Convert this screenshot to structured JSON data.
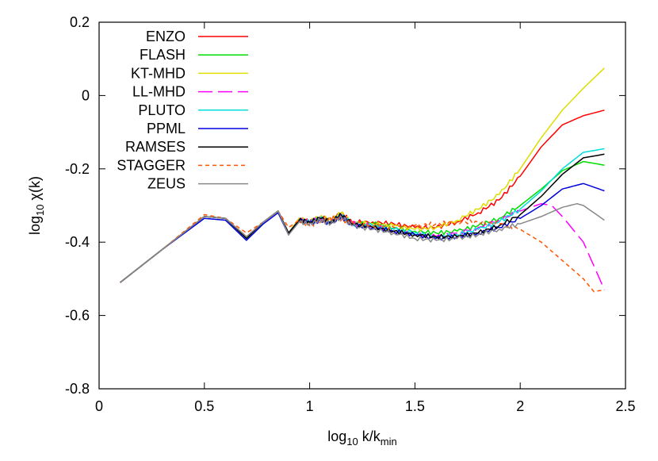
{
  "chart_data": {
    "type": "line",
    "xlabel": {
      "main": "log",
      "sub": "10",
      "rest": " k/k",
      "sub2": "min"
    },
    "ylabel": {
      "main": "log",
      "sub": "10",
      "rest": " χ(k)"
    },
    "xlim": [
      0,
      2.5
    ],
    "ylim": [
      -0.8,
      0.2
    ],
    "xticks": [
      "0",
      "0.5",
      "1",
      "1.5",
      "2",
      "2.5"
    ],
    "xtick_values": [
      0,
      0.5,
      1,
      1.5,
      2,
      2.5
    ],
    "yticks": [
      "-0.8",
      "-0.6",
      "-0.4",
      "-0.2",
      "0",
      "0.2"
    ],
    "ytick_values": [
      -0.8,
      -0.6,
      -0.4,
      -0.2,
      0,
      0.2
    ],
    "grid": false,
    "legend_position": "top-left",
    "series": [
      {
        "name": "ENZO",
        "color": "#ff0000",
        "dash": "solid",
        "points": [
          [
            0.1,
            -0.51
          ],
          [
            0.3,
            -0.42
          ],
          [
            0.5,
            -0.33
          ],
          [
            0.6,
            -0.335
          ],
          [
            0.7,
            -0.385
          ],
          [
            0.78,
            -0.345
          ],
          [
            0.85,
            -0.315
          ],
          [
            0.9,
            -0.375
          ],
          [
            0.95,
            -0.335
          ],
          [
            1.0,
            -0.345
          ],
          [
            1.05,
            -0.33
          ],
          [
            1.1,
            -0.34
          ],
          [
            1.15,
            -0.32
          ],
          [
            1.2,
            -0.345
          ],
          [
            1.3,
            -0.345
          ],
          [
            1.4,
            -0.35
          ],
          [
            1.5,
            -0.36
          ],
          [
            1.6,
            -0.36
          ],
          [
            1.7,
            -0.345
          ],
          [
            1.8,
            -0.32
          ],
          [
            1.9,
            -0.285
          ],
          [
            2.0,
            -0.22
          ],
          [
            2.1,
            -0.14
          ],
          [
            2.2,
            -0.08
          ],
          [
            2.3,
            -0.055
          ],
          [
            2.4,
            -0.04
          ]
        ]
      },
      {
        "name": "FLASH",
        "color": "#00dd00",
        "dash": "solid",
        "points": [
          [
            0.1,
            -0.51
          ],
          [
            0.3,
            -0.42
          ],
          [
            0.5,
            -0.33
          ],
          [
            0.6,
            -0.335
          ],
          [
            0.7,
            -0.39
          ],
          [
            0.78,
            -0.345
          ],
          [
            0.85,
            -0.315
          ],
          [
            0.9,
            -0.375
          ],
          [
            0.95,
            -0.34
          ],
          [
            1.0,
            -0.345
          ],
          [
            1.05,
            -0.335
          ],
          [
            1.1,
            -0.345
          ],
          [
            1.15,
            -0.325
          ],
          [
            1.2,
            -0.35
          ],
          [
            1.3,
            -0.35
          ],
          [
            1.4,
            -0.36
          ],
          [
            1.5,
            -0.37
          ],
          [
            1.6,
            -0.375
          ],
          [
            1.7,
            -0.37
          ],
          [
            1.8,
            -0.355
          ],
          [
            1.9,
            -0.335
          ],
          [
            2.0,
            -0.3
          ],
          [
            2.1,
            -0.255
          ],
          [
            2.2,
            -0.205
          ],
          [
            2.3,
            -0.18
          ],
          [
            2.4,
            -0.19
          ]
        ]
      },
      {
        "name": "KT-MHD",
        "color": "#dddd00",
        "dash": "solid",
        "points": [
          [
            0.1,
            -0.51
          ],
          [
            0.3,
            -0.42
          ],
          [
            0.5,
            -0.33
          ],
          [
            0.6,
            -0.335
          ],
          [
            0.7,
            -0.385
          ],
          [
            0.78,
            -0.345
          ],
          [
            0.85,
            -0.315
          ],
          [
            0.9,
            -0.375
          ],
          [
            0.95,
            -0.335
          ],
          [
            1.0,
            -0.345
          ],
          [
            1.05,
            -0.33
          ],
          [
            1.1,
            -0.34
          ],
          [
            1.15,
            -0.32
          ],
          [
            1.2,
            -0.345
          ],
          [
            1.3,
            -0.35
          ],
          [
            1.4,
            -0.355
          ],
          [
            1.5,
            -0.365
          ],
          [
            1.6,
            -0.36
          ],
          [
            1.7,
            -0.34
          ],
          [
            1.8,
            -0.31
          ],
          [
            1.9,
            -0.27
          ],
          [
            2.0,
            -0.2
          ],
          [
            2.1,
            -0.115
          ],
          [
            2.2,
            -0.04
          ],
          [
            2.3,
            0.02
          ],
          [
            2.4,
            0.075
          ]
        ]
      },
      {
        "name": "LL-MHD",
        "color": "#ff00ff",
        "dash": "longdash",
        "points": [
          [
            0.1,
            -0.51
          ],
          [
            0.3,
            -0.42
          ],
          [
            0.5,
            -0.33
          ],
          [
            0.6,
            -0.335
          ],
          [
            0.7,
            -0.385
          ],
          [
            0.78,
            -0.345
          ],
          [
            0.85,
            -0.315
          ],
          [
            0.9,
            -0.375
          ],
          [
            0.95,
            -0.34
          ],
          [
            1.0,
            -0.345
          ],
          [
            1.05,
            -0.335
          ],
          [
            1.1,
            -0.345
          ],
          [
            1.15,
            -0.325
          ],
          [
            1.2,
            -0.35
          ],
          [
            1.3,
            -0.355
          ],
          [
            1.4,
            -0.37
          ],
          [
            1.5,
            -0.38
          ],
          [
            1.6,
            -0.385
          ],
          [
            1.7,
            -0.375
          ],
          [
            1.8,
            -0.36
          ],
          [
            1.9,
            -0.34
          ],
          [
            2.0,
            -0.315
          ],
          [
            2.1,
            -0.295
          ],
          [
            2.15,
            -0.3
          ],
          [
            2.2,
            -0.33
          ],
          [
            2.3,
            -0.4
          ],
          [
            2.4,
            -0.53
          ]
        ]
      },
      {
        "name": "PLUTO",
        "color": "#00dddd",
        "dash": "solid",
        "points": [
          [
            0.1,
            -0.51
          ],
          [
            0.3,
            -0.42
          ],
          [
            0.5,
            -0.33
          ],
          [
            0.6,
            -0.335
          ],
          [
            0.7,
            -0.39
          ],
          [
            0.78,
            -0.345
          ],
          [
            0.85,
            -0.315
          ],
          [
            0.9,
            -0.375
          ],
          [
            0.95,
            -0.34
          ],
          [
            1.0,
            -0.345
          ],
          [
            1.05,
            -0.335
          ],
          [
            1.1,
            -0.345
          ],
          [
            1.15,
            -0.325
          ],
          [
            1.2,
            -0.35
          ],
          [
            1.3,
            -0.355
          ],
          [
            1.4,
            -0.365
          ],
          [
            1.5,
            -0.375
          ],
          [
            1.6,
            -0.385
          ],
          [
            1.7,
            -0.38
          ],
          [
            1.8,
            -0.365
          ],
          [
            1.9,
            -0.345
          ],
          [
            2.0,
            -0.31
          ],
          [
            2.1,
            -0.26
          ],
          [
            2.2,
            -0.2
          ],
          [
            2.3,
            -0.155
          ],
          [
            2.4,
            -0.145
          ]
        ]
      },
      {
        "name": "PPML",
        "color": "#0000dd",
        "dash": "solid",
        "points": [
          [
            0.1,
            -0.51
          ],
          [
            0.3,
            -0.42
          ],
          [
            0.5,
            -0.335
          ],
          [
            0.6,
            -0.34
          ],
          [
            0.7,
            -0.395
          ],
          [
            0.78,
            -0.35
          ],
          [
            0.85,
            -0.32
          ],
          [
            0.9,
            -0.38
          ],
          [
            0.95,
            -0.34
          ],
          [
            1.0,
            -0.35
          ],
          [
            1.05,
            -0.34
          ],
          [
            1.1,
            -0.35
          ],
          [
            1.15,
            -0.33
          ],
          [
            1.2,
            -0.355
          ],
          [
            1.3,
            -0.36
          ],
          [
            1.4,
            -0.37
          ],
          [
            1.5,
            -0.38
          ],
          [
            1.6,
            -0.39
          ],
          [
            1.7,
            -0.385
          ],
          [
            1.8,
            -0.375
          ],
          [
            1.9,
            -0.36
          ],
          [
            2.0,
            -0.335
          ],
          [
            2.1,
            -0.3
          ],
          [
            2.2,
            -0.255
          ],
          [
            2.3,
            -0.24
          ],
          [
            2.4,
            -0.26
          ]
        ]
      },
      {
        "name": "RAMSES",
        "color": "#000000",
        "dash": "solid",
        "points": [
          [
            0.1,
            -0.51
          ],
          [
            0.3,
            -0.42
          ],
          [
            0.5,
            -0.33
          ],
          [
            0.6,
            -0.335
          ],
          [
            0.7,
            -0.39
          ],
          [
            0.78,
            -0.345
          ],
          [
            0.85,
            -0.315
          ],
          [
            0.9,
            -0.375
          ],
          [
            0.95,
            -0.34
          ],
          [
            1.0,
            -0.345
          ],
          [
            1.05,
            -0.335
          ],
          [
            1.1,
            -0.345
          ],
          [
            1.15,
            -0.325
          ],
          [
            1.2,
            -0.35
          ],
          [
            1.3,
            -0.36
          ],
          [
            1.4,
            -0.37
          ],
          [
            1.5,
            -0.38
          ],
          [
            1.6,
            -0.385
          ],
          [
            1.7,
            -0.385
          ],
          [
            1.8,
            -0.375
          ],
          [
            1.9,
            -0.355
          ],
          [
            2.0,
            -0.325
          ],
          [
            2.1,
            -0.275
          ],
          [
            2.2,
            -0.215
          ],
          [
            2.3,
            -0.17
          ],
          [
            2.4,
            -0.16
          ]
        ]
      },
      {
        "name": "STAGGER",
        "color": "#ff5500",
        "dash": "shortdash",
        "points": [
          [
            0.1,
            -0.51
          ],
          [
            0.3,
            -0.42
          ],
          [
            0.5,
            -0.325
          ],
          [
            0.6,
            -0.335
          ],
          [
            0.7,
            -0.375
          ],
          [
            0.78,
            -0.345
          ],
          [
            0.85,
            -0.315
          ],
          [
            0.9,
            -0.36
          ],
          [
            0.95,
            -0.34
          ],
          [
            1.0,
            -0.355
          ],
          [
            1.05,
            -0.345
          ],
          [
            1.1,
            -0.335
          ],
          [
            1.15,
            -0.34
          ],
          [
            1.2,
            -0.345
          ],
          [
            1.3,
            -0.355
          ],
          [
            1.4,
            -0.36
          ],
          [
            1.5,
            -0.355
          ],
          [
            1.6,
            -0.35
          ],
          [
            1.7,
            -0.345
          ],
          [
            1.8,
            -0.345
          ],
          [
            1.9,
            -0.35
          ],
          [
            2.0,
            -0.365
          ],
          [
            2.1,
            -0.4
          ],
          [
            2.2,
            -0.45
          ],
          [
            2.3,
            -0.5
          ],
          [
            2.35,
            -0.535
          ],
          [
            2.4,
            -0.53
          ]
        ]
      },
      {
        "name": "ZEUS",
        "color": "#888888",
        "dash": "solid",
        "points": [
          [
            0.1,
            -0.51
          ],
          [
            0.3,
            -0.42
          ],
          [
            0.5,
            -0.33
          ],
          [
            0.6,
            -0.335
          ],
          [
            0.7,
            -0.385
          ],
          [
            0.78,
            -0.345
          ],
          [
            0.85,
            -0.315
          ],
          [
            0.9,
            -0.38
          ],
          [
            0.95,
            -0.345
          ],
          [
            1.0,
            -0.35
          ],
          [
            1.05,
            -0.34
          ],
          [
            1.1,
            -0.35
          ],
          [
            1.15,
            -0.33
          ],
          [
            1.2,
            -0.355
          ],
          [
            1.3,
            -0.365
          ],
          [
            1.4,
            -0.375
          ],
          [
            1.5,
            -0.39
          ],
          [
            1.6,
            -0.395
          ],
          [
            1.7,
            -0.39
          ],
          [
            1.8,
            -0.38
          ],
          [
            1.9,
            -0.365
          ],
          [
            2.0,
            -0.35
          ],
          [
            2.1,
            -0.33
          ],
          [
            2.2,
            -0.305
          ],
          [
            2.27,
            -0.295
          ],
          [
            2.3,
            -0.3
          ],
          [
            2.4,
            -0.34
          ]
        ]
      }
    ]
  }
}
